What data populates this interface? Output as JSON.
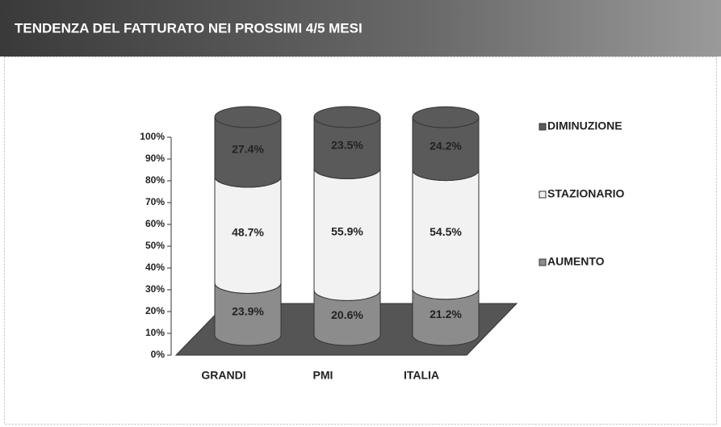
{
  "chart_data": {
    "type": "bar3d-stacked",
    "title": "TENDENZA DEL FATTURATO NEI PROSSIMI 4/5 MESI",
    "categories": [
      "GRANDI",
      "PMI",
      "ITALIA"
    ],
    "series": [
      {
        "name": "AUMENTO",
        "color": "#8c8c8c",
        "values": [
          23.9,
          20.6,
          21.2
        ],
        "value_labels": [
          "23.9%",
          "20.6%",
          "21.2%"
        ]
      },
      {
        "name": "STAZIONARIO",
        "color": "#f2f2f2",
        "values": [
          48.7,
          55.9,
          54.5
        ],
        "value_labels": [
          "48.7%",
          "55.9%",
          "54.5%"
        ]
      },
      {
        "name": "DIMINUZIONE",
        "color": "#5a5a5a",
        "values": [
          27.4,
          23.5,
          24.2
        ],
        "value_labels": [
          "27.4%",
          "23.5%",
          "24.2%"
        ]
      }
    ],
    "ylim": [
      0,
      100
    ],
    "yticks": [
      {
        "value": 0,
        "label": "0%"
      },
      {
        "value": 10,
        "label": "10%"
      },
      {
        "value": 20,
        "label": "20%"
      },
      {
        "value": 30,
        "label": "30%"
      },
      {
        "value": 40,
        "label": "40%"
      },
      {
        "value": 50,
        "label": "50%"
      },
      {
        "value": 60,
        "label": "60%"
      },
      {
        "value": 70,
        "label": "70%"
      },
      {
        "value": 80,
        "label": "80%"
      },
      {
        "value": 90,
        "label": "90%"
      },
      {
        "value": 100,
        "label": "100%"
      }
    ],
    "legend": "right"
  }
}
